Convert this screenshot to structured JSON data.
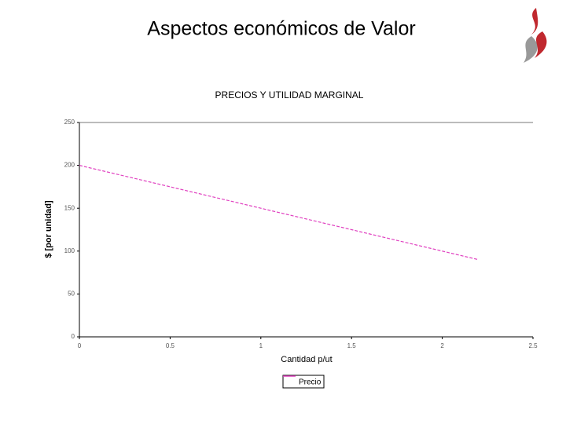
{
  "slide_title": "Aspectos económicos de Valor",
  "chart_data": {
    "type": "line",
    "title": "PRECIOS Y UTILIDAD MARGINAL",
    "x_label": "Cantidad p/ut",
    "y_label": "$ [por unidad]",
    "x": [
      0,
      0.5,
      1,
      1.5,
      2,
      2.2
    ],
    "series": [
      {
        "name": "Precio",
        "color": "#e040c0",
        "values": [
          200,
          175,
          150,
          125,
          100,
          90
        ]
      }
    ],
    "xlim": [
      0,
      2.5
    ],
    "xticks": [
      0,
      0.5,
      1,
      1.5,
      2,
      2.5
    ],
    "ylim": [
      0,
      250
    ],
    "yticks": [
      0,
      50,
      100,
      150,
      200,
      250
    ],
    "grid": false,
    "legend": "bottom"
  }
}
